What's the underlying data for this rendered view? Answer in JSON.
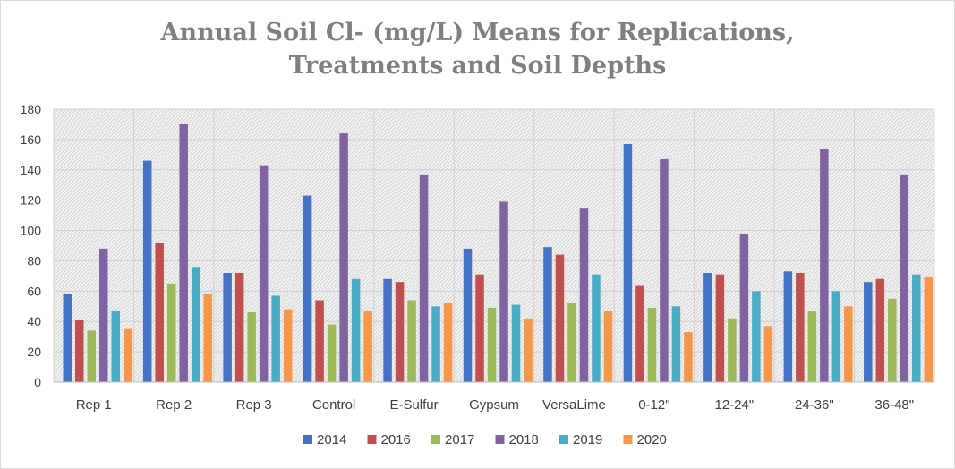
{
  "chart_data": {
    "type": "bar",
    "title_lines": [
      "Annual Soil Cl- (mg/L) Means for Replications,",
      "Treatments and Soil Depths"
    ],
    "title": "Annual Soil Cl- (mg/L) Means for Replications, Treatments and Soil Depths",
    "xlabel": "",
    "ylabel": "",
    "ylim": [
      0,
      180
    ],
    "y_ticks": [
      0,
      20,
      40,
      60,
      80,
      100,
      120,
      140,
      160,
      180
    ],
    "categories": [
      "Rep 1",
      "Rep 2",
      "Rep 3",
      "Control",
      "E-Sulfur",
      "Gypsum",
      "VersaLime",
      "0-12\"",
      "12-24\"",
      "24-36\"",
      "36-48\""
    ],
    "series": [
      {
        "name": "2014",
        "color": "#4472c4",
        "values": [
          58,
          146,
          72,
          123,
          68,
          88,
          89,
          157,
          72,
          73,
          66
        ]
      },
      {
        "name": "2016",
        "color": "#c0504d",
        "values": [
          41,
          92,
          72,
          54,
          66,
          71,
          84,
          64,
          71,
          72,
          68
        ]
      },
      {
        "name": "2017",
        "color": "#9bbb59",
        "values": [
          34,
          65,
          46,
          38,
          54,
          49,
          52,
          49,
          42,
          47,
          55
        ]
      },
      {
        "name": "2018",
        "color": "#8064a2",
        "values": [
          88,
          170,
          143,
          164,
          137,
          119,
          115,
          147,
          98,
          154,
          137
        ]
      },
      {
        "name": "2019",
        "color": "#4bacc6",
        "values": [
          47,
          76,
          57,
          68,
          50,
          51,
          71,
          50,
          60,
          60,
          71
        ]
      },
      {
        "name": "2020",
        "color": "#f79646",
        "values": [
          35,
          58,
          48,
          47,
          52,
          42,
          47,
          33,
          37,
          50,
          69
        ]
      }
    ],
    "grid": true,
    "legend_position": "bottom"
  }
}
